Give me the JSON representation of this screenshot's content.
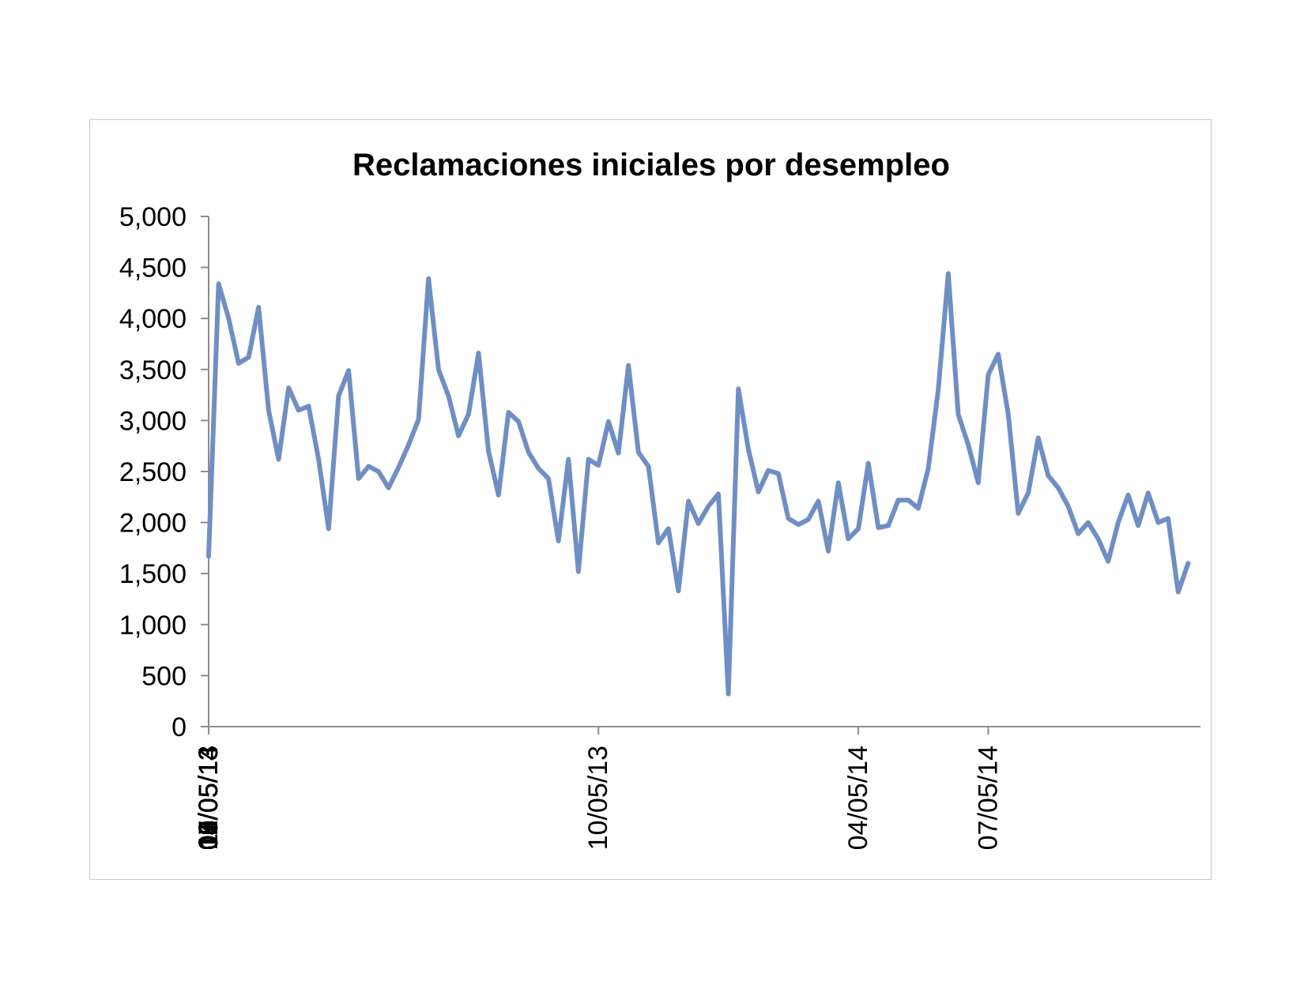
{
  "colors": {
    "series_line": "#6f8fc4",
    "axis": "#8c8c8c",
    "frame_border": "#c8c8c8"
  },
  "chart_data": {
    "type": "line",
    "title": "Reclamaciones iniciales por desempleo",
    "xlabel": "",
    "ylabel": "",
    "ylim": [
      0,
      5000
    ],
    "yticks": [
      0,
      500,
      1000,
      1500,
      2000,
      2500,
      3000,
      3500,
      4000,
      4500,
      5000
    ],
    "ytick_labels": [
      "0",
      "500",
      "1,000",
      "1,500",
      "2,000",
      "2,500",
      "3,000",
      "3,500",
      "4,000",
      "4,500",
      "5,000"
    ],
    "xtick_labels": [
      "01/05/13",
      "02/05/13",
      "03/05/13",
      "04/05/13",
      "05/05/13",
      "06/05/13",
      "07/05/13",
      "08/05/13",
      "09/05/13",
      "10/05/13",
      "11/05/13",
      "12/05/13",
      "01/05/14",
      "02/05/14",
      "03/05/14",
      "04/05/14",
      "05/05/14",
      "06/05/14",
      "07/05/14",
      "08/05/14",
      "09/05/14",
      "10/05/14",
      "11/05/14"
    ],
    "grid": false,
    "legend": "none",
    "series": [
      {
        "x": [
          "01/05/13",
          "01/12/13",
          "01/19/13",
          "01/26/13",
          "02/02/13",
          "02/09/13",
          "02/16/13",
          "02/23/13",
          "03/02/13",
          "03/09/13",
          "03/16/13",
          "03/23/13",
          "03/30/13",
          "04/06/13",
          "04/13/13",
          "04/20/13",
          "04/27/13",
          "05/04/13",
          "05/11/13",
          "05/18/13",
          "05/25/13",
          "06/01/13",
          "06/08/13",
          "06/15/13",
          "06/22/13",
          "06/29/13",
          "07/06/13",
          "07/13/13",
          "07/20/13",
          "07/27/13",
          "08/03/13",
          "08/10/13",
          "08/17/13",
          "08/24/13",
          "08/31/13",
          "09/07/13",
          "09/14/13",
          "09/21/13",
          "09/28/13",
          "10/05/13",
          "10/12/13",
          "10/19/13",
          "10/26/13",
          "11/02/13",
          "11/09/13",
          "11/16/13",
          "11/23/13",
          "11/30/13",
          "12/07/13",
          "12/14/13",
          "12/21/13",
          "12/28/13",
          "01/04/14",
          "01/11/14",
          "01/18/14",
          "01/25/14",
          "02/01/14",
          "02/08/14",
          "02/15/14",
          "02/22/14",
          "03/01/14",
          "03/08/14",
          "03/15/14",
          "03/22/14",
          "03/29/14",
          "04/05/14",
          "04/12/14",
          "04/19/14",
          "04/26/14",
          "05/03/14",
          "05/10/14",
          "05/17/14",
          "05/24/14",
          "05/31/14",
          "06/07/14",
          "06/14/14",
          "06/21/14",
          "06/28/14",
          "07/05/14",
          "07/12/14",
          "07/19/14",
          "07/26/14",
          "08/02/14",
          "08/09/14",
          "08/16/14",
          "08/23/14",
          "08/30/14",
          "09/06/14",
          "09/13/14",
          "09/20/14",
          "09/27/14",
          "10/04/14",
          "10/11/14",
          "10/18/14",
          "10/25/14",
          "11/01/14",
          "11/08/14",
          "11/15/14",
          "11/22/14"
        ],
        "values": [
          1670,
          4340,
          4000,
          3560,
          3620,
          4110,
          3100,
          2620,
          3320,
          3100,
          3140,
          2620,
          1940,
          3240,
          3490,
          2430,
          2550,
          2500,
          2340,
          2540,
          2760,
          3010,
          4390,
          3500,
          3240,
          2850,
          3060,
          3660,
          2700,
          2270,
          3080,
          2990,
          2690,
          2530,
          2430,
          1820,
          2620,
          1520,
          2620,
          2560,
          2990,
          2680,
          3540,
          2690,
          2550,
          1800,
          1940,
          1330,
          2210,
          1990,
          2160,
          2280,
          320,
          3310,
          2720,
          2300,
          2510,
          2480,
          2040,
          1980,
          2030,
          2210,
          1720,
          2390,
          1840,
          1940,
          2580,
          1950,
          1970,
          2220,
          2220,
          2140,
          2530,
          3300,
          4440,
          3060,
          2760,
          2390,
          3450,
          3650,
          3060,
          2090,
          2290,
          2830,
          2460,
          2340,
          2160,
          1890,
          2000,
          1840,
          1620,
          2000,
          2270,
          1970,
          2290,
          2000,
          2040,
          1320,
          1600
        ]
      }
    ]
  }
}
